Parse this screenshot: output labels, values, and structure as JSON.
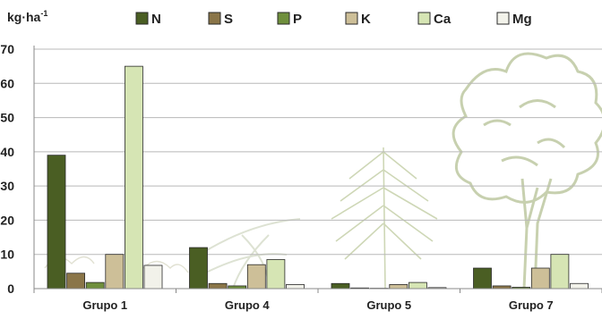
{
  "chart_data": {
    "type": "bar",
    "title": "",
    "xlabel": "",
    "ylabel": "kg·ha",
    "ylabel_superscript": "-1",
    "ylim": [
      0,
      70
    ],
    "yticks": [
      "0",
      "10",
      "20",
      "30",
      "40",
      "50",
      "60",
      "70"
    ],
    "grid": true,
    "legend_position": "top",
    "categories": [
      "Grupo 1",
      "Grupo 4",
      "Grupo 5",
      "Grupo 7"
    ],
    "series": [
      {
        "name": "N",
        "color": "#4a5e23",
        "values": [
          39,
          12,
          1.5,
          6
        ]
      },
      {
        "name": "S",
        "color": "#8a7548",
        "values": [
          4.5,
          1.5,
          0.2,
          0.8
        ]
      },
      {
        "name": "P",
        "color": "#6f8f3c",
        "values": [
          1.8,
          0.8,
          0.1,
          0.4
        ]
      },
      {
        "name": "K",
        "color": "#cdbf98",
        "values": [
          10,
          7,
          1.2,
          6
        ]
      },
      {
        "name": "Ca",
        "color": "#d6e5b4",
        "values": [
          65,
          8.5,
          1.8,
          10
        ]
      },
      {
        "name": "Mg",
        "color": "#f2f2ea",
        "values": [
          6.8,
          1.2,
          0.3,
          1.5
        ]
      }
    ]
  }
}
